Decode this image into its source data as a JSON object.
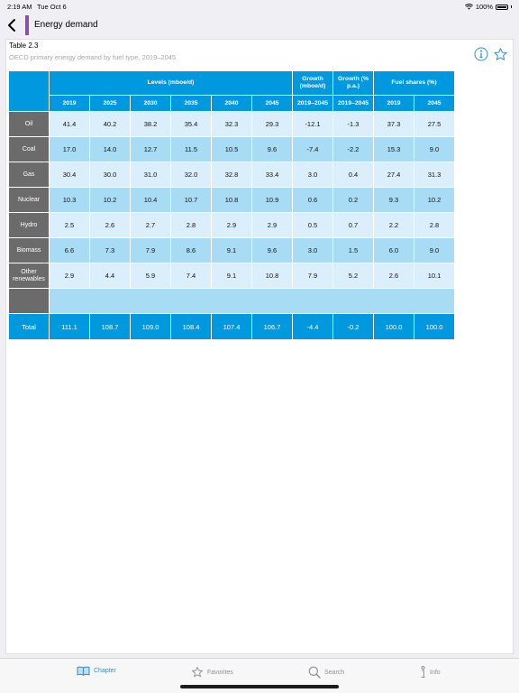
{
  "status": {
    "time": "2:19 AM",
    "date": "Tue Oct 6",
    "battery": "100%"
  },
  "nav": {
    "title": "Energy demand",
    "accent_color": "#8a4fa6"
  },
  "card": {
    "label": "Table 2.3",
    "subtitle": "OECD primary energy demand by fuel type, 2019–2045"
  },
  "table": {
    "groups": {
      "levels": "Levels (mboe/d)",
      "growth_abs": "Growth (mboe/d)",
      "growth_pct": "Growth (% p.a.)",
      "shares": "Fuel shares (%)"
    },
    "columns": [
      "2019",
      "2025",
      "2030",
      "2035",
      "2040",
      "2045",
      "2019–2045",
      "2019–2045",
      "2019",
      "2045"
    ],
    "rows": [
      {
        "label": "Oil",
        "values": [
          "41.4",
          "40.2",
          "38.2",
          "35.4",
          "32.3",
          "29.3",
          "-12.1",
          "-1.3",
          "37.3",
          "27.5"
        ]
      },
      {
        "label": "Coal",
        "values": [
          "17.0",
          "14.0",
          "12.7",
          "11.5",
          "10.5",
          "9.6",
          "-7.4",
          "-2.2",
          "15.3",
          "9.0"
        ]
      },
      {
        "label": "Gas",
        "values": [
          "30.4",
          "30.0",
          "31.0",
          "32.0",
          "32.8",
          "33.4",
          "3.0",
          "0.4",
          "27.4",
          "31.3"
        ]
      },
      {
        "label": "Nuclear",
        "values": [
          "10.3",
          "10.2",
          "10.4",
          "10.7",
          "10.8",
          "10.9",
          "0.6",
          "0.2",
          "9.3",
          "10.2"
        ]
      },
      {
        "label": "Hydro",
        "values": [
          "2.5",
          "2.6",
          "2.7",
          "2.8",
          "2.9",
          "2.9",
          "0.5",
          "0.7",
          "2.2",
          "2.8"
        ]
      },
      {
        "label": "Biomass",
        "values": [
          "6.6",
          "7.3",
          "7.9",
          "8.6",
          "9.1",
          "9.6",
          "3.0",
          "1.5",
          "6.0",
          "9.0"
        ]
      },
      {
        "label": "Other renewables",
        "values": [
          "2.9",
          "4.4",
          "5.9",
          "7.4",
          "9.1",
          "10.8",
          "7.9",
          "5.2",
          "2.6",
          "10.1"
        ]
      }
    ],
    "total": {
      "label": "Total",
      "values": [
        "111.1",
        "108.7",
        "109.0",
        "108.4",
        "107.4",
        "106.7",
        "-4.4",
        "-0.2",
        "100.0",
        "100.0"
      ]
    }
  },
  "tabs": [
    {
      "label": "Chapter",
      "icon": "book-icon",
      "active": true
    },
    {
      "label": "Favorites",
      "icon": "star-icon",
      "active": false
    },
    {
      "label": "Search",
      "icon": "search-icon",
      "active": false
    },
    {
      "label": "Info",
      "icon": "info-icon",
      "active": false
    }
  ],
  "colors": {
    "header_blue": "#0099e0",
    "row_light": "#dbeefb",
    "row_mid": "#a8dcf4",
    "row_label": "#6b6b6b",
    "tab_active": "#2b8fd6"
  }
}
